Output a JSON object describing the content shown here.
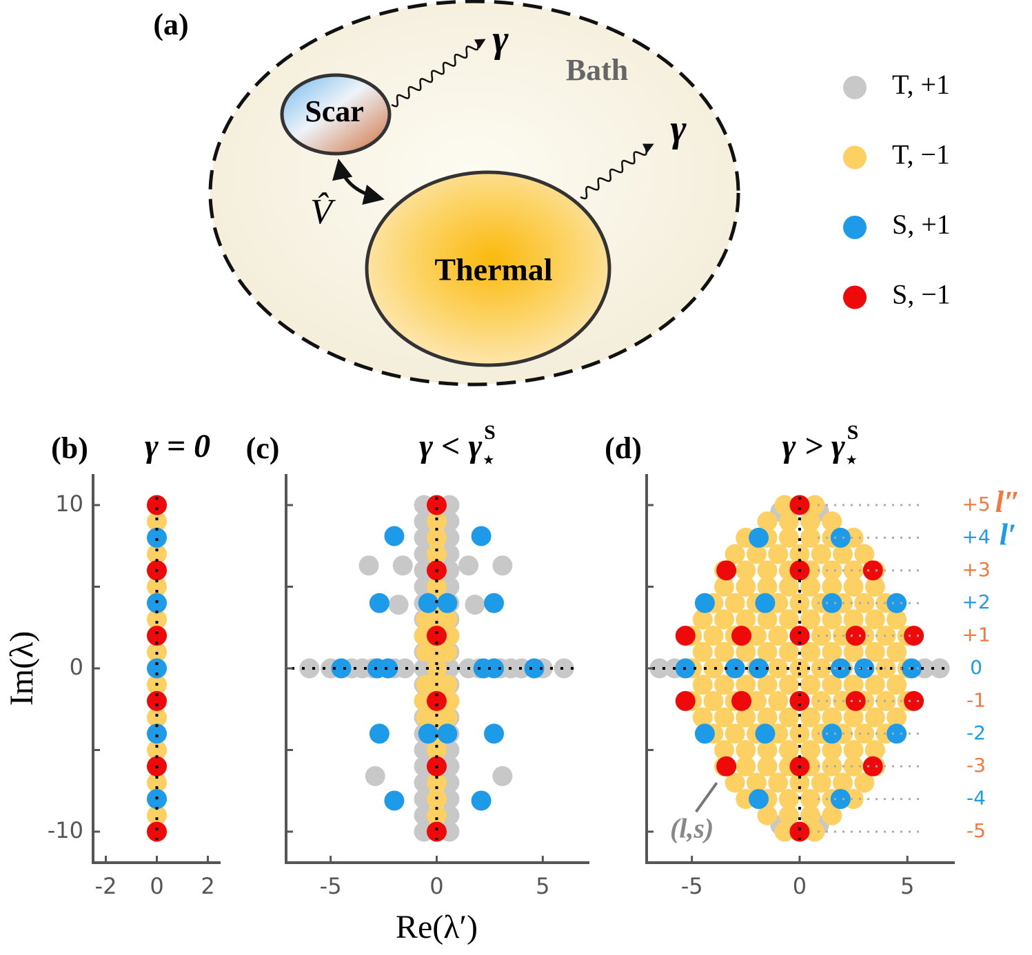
{
  "diagram": {
    "label": "(a)",
    "bath": "Bath",
    "scar": "Scar",
    "thermal": "Thermal",
    "gamma": "γ",
    "coupling": "V̂"
  },
  "chart_data": [
    {
      "type": "scatter",
      "panel_label": "(b)",
      "title": "γ = 0",
      "xlim": [
        -2.5,
        2.5
      ],
      "xticks": [
        -2,
        0,
        2
      ],
      "ylim": [
        -11.9,
        11.9
      ],
      "yticks": [
        -10,
        0,
        10
      ],
      "yminor": [
        -5,
        5
      ],
      "ylabel": "Im(λ)",
      "series": [
        {
          "color": "#fcd062",
          "x": [
            0,
            0,
            0,
            0,
            0,
            0,
            0,
            0,
            0,
            0,
            0,
            0,
            0,
            0,
            0,
            0,
            0,
            0,
            0,
            0,
            0
          ],
          "values": [
            10,
            9,
            8,
            7,
            6,
            5,
            4,
            3,
            2,
            1,
            0,
            -1,
            -2,
            -3,
            -4,
            -5,
            -6,
            -7,
            -8,
            -9,
            -10
          ]
        },
        {
          "color": "#1e9be8",
          "x": [
            0,
            0,
            0,
            0,
            0
          ],
          "values": [
            8,
            4,
            0,
            -4,
            -8
          ]
        },
        {
          "color": "#ee0a0a",
          "x": [
            0,
            0,
            0,
            0,
            0,
            0
          ],
          "values": [
            10,
            6,
            2,
            -2,
            -6,
            -10
          ]
        }
      ]
    },
    {
      "type": "scatter",
      "panel_label": "(c)",
      "title": "γ < γ",
      "title_sup": "S",
      "title_sub": "⋆",
      "xlim": [
        -7.1,
        7.2
      ],
      "xticks": [
        -5,
        0,
        5
      ],
      "ylim": [
        -11.9,
        11.9
      ],
      "yticks": [
        -10,
        -5,
        0,
        5,
        10
      ],
      "ytick_labels": false,
      "xlabel": "Re(λ′)",
      "series": [
        {
          "color": "#c8c8c8",
          "x": [
            -0.6,
            0.6,
            -0.6,
            0.6,
            -0.6,
            0.6,
            -0.6,
            0.6,
            -0.6,
            0.6,
            -0.6,
            0.6,
            -0.6,
            0.6,
            -0.6,
            0.6,
            -0.6,
            0.6,
            -0.6,
            0.6,
            -0.6,
            0.6,
            -0.6,
            0.6,
            -0.6,
            0.6,
            -0.6,
            0.6,
            -0.6,
            0.6,
            -0.6,
            0.6,
            -0.6,
            0.6,
            -0.6,
            0.6,
            -0.6,
            0.6,
            -0.6,
            0.6,
            -0.6,
            0.6,
            -6,
            -5,
            -4,
            -3.5,
            -3,
            -2,
            -1.5,
            1.5,
            2,
            3,
            3.5,
            4,
            5,
            6,
            -3.2,
            -1.6,
            1.5,
            3.1,
            -1.8,
            1.8,
            -2.9,
            3.1
          ],
          "values": [
            10,
            10,
            9,
            9,
            8,
            8,
            7,
            7,
            6,
            6,
            5,
            5,
            4,
            4,
            3,
            3,
            2,
            2,
            1,
            1,
            0,
            0,
            -1,
            -1,
            -2,
            -2,
            -3,
            -3,
            -4,
            -4,
            -5,
            -5,
            -6,
            -6,
            -7,
            -7,
            -8,
            -8,
            -9,
            -9,
            -10,
            -10,
            0,
            0,
            0,
            0,
            0,
            0,
            0,
            0,
            0,
            0,
            0,
            0,
            0,
            0,
            6.3,
            6.3,
            6.3,
            6.3,
            3.9,
            3.9,
            -6.6,
            -6.6
          ]
        },
        {
          "color": "#fcd062",
          "x": [
            0,
            0,
            0,
            0,
            0,
            0,
            0,
            0,
            0,
            0,
            0,
            0,
            0,
            0,
            0,
            0,
            0,
            0,
            0,
            0,
            0,
            -0.6,
            0.6,
            -0.6,
            0.6,
            -0.5,
            0.5,
            -0.5,
            0.5,
            -0.5,
            0.5,
            -0.5,
            0.5
          ],
          "values": [
            10,
            9,
            8,
            7,
            6,
            5,
            4,
            3,
            2,
            1,
            0,
            -1,
            -2,
            -3,
            -4,
            -5,
            -6,
            -7,
            -8,
            -9,
            -10,
            2,
            2,
            -2,
            -2,
            3,
            3,
            1,
            1,
            -1,
            -1,
            -3,
            -3
          ]
        },
        {
          "color": "#1e9be8",
          "x": [
            -2,
            2.1,
            -2.7,
            -0.4,
            0.5,
            2.7,
            -4.5,
            -2.8,
            -2.3,
            2.2,
            2.7,
            4.6,
            -2.7,
            -0.4,
            0.5,
            2.7,
            -2,
            2.1
          ],
          "values": [
            8.1,
            8.1,
            4,
            4,
            4,
            4,
            0,
            0,
            0,
            0,
            0,
            0,
            -4,
            -4,
            -4,
            -4,
            -8.1,
            -8.1
          ]
        },
        {
          "color": "#ee0a0a",
          "x": [
            0,
            0,
            0,
            0,
            0,
            0
          ],
          "values": [
            10,
            6,
            2,
            -2,
            -6,
            -10
          ]
        }
      ]
    },
    {
      "type": "scatter",
      "panel_label": "(d)",
      "title": "γ > γ",
      "title_sup": "S",
      "title_sub": "⋆",
      "xlim": [
        -7.1,
        7.2
      ],
      "xticks": [
        -5,
        0,
        5
      ],
      "ylim": [
        -11.9,
        11.9
      ],
      "yticks": [
        -10,
        -5,
        0,
        5,
        10
      ],
      "ytick_labels": false,
      "series": [
        {
          "name": "T, +1",
          "color": "#c8c8c8",
          "x": [
            -6.5,
            -5.8,
            5.8,
            6.5,
            -0.9,
            0.9,
            -0.9,
            0.9
          ],
          "values": [
            0,
            0,
            0,
            0,
            9.6,
            9.6,
            -9.6,
            -9.6
          ]
        },
        {
          "name": "T, −1",
          "color": "#fcd062",
          "x": [
            -0.7,
            0.7,
            -1.5,
            -0.5,
            0.5,
            1.5,
            -2.5,
            -1.5,
            -0.5,
            0.5,
            1.5,
            2.5,
            -3,
            -2,
            -1,
            0,
            1,
            2,
            3,
            -3.5,
            -2.5,
            -1.5,
            -0.5,
            0.5,
            1.5,
            2.5,
            3.5,
            -3.5,
            -2.5,
            -1.5,
            -0.5,
            0.5,
            1.5,
            2.5,
            3.5,
            -4,
            -3,
            -2,
            -1,
            0,
            1,
            2,
            3,
            4,
            -4.5,
            -3.5,
            -2.5,
            -1.5,
            -0.5,
            0.5,
            1.5,
            2.5,
            3.5,
            4.5,
            -5,
            -4,
            -3,
            -2,
            -1,
            0,
            1,
            2,
            3,
            4,
            5,
            -4.5,
            -3.5,
            -2.5,
            -1.5,
            -0.5,
            0.5,
            1.5,
            2.5,
            3.5,
            4.5,
            -5,
            -4,
            -3,
            -2,
            -1,
            0,
            1,
            2,
            3,
            4,
            5,
            -4.5,
            -3.5,
            -2.5,
            -1.5,
            -0.5,
            0.5,
            1.5,
            2.5,
            3.5,
            4.5,
            -5,
            -4,
            -3,
            -2,
            -1,
            0,
            1,
            2,
            3,
            4,
            5,
            -4.5,
            -3.5,
            -2.5,
            -1.5,
            -0.5,
            0.5,
            1.5,
            2.5,
            3.5,
            4.5,
            -4,
            -3,
            -2,
            -1,
            0,
            1,
            2,
            3,
            4,
            -3.5,
            -2.5,
            -1.5,
            -0.5,
            0.5,
            1.5,
            2.5,
            3.5,
            -3.5,
            -2.5,
            -1.5,
            -0.5,
            0.5,
            1.5,
            2.5,
            3.5,
            -3,
            -2,
            -1,
            0,
            1,
            2,
            3,
            -2.5,
            -1.5,
            -0.5,
            0.5,
            1.5,
            2.5,
            -1.5,
            -0.5,
            0.5,
            1.5,
            -0.7,
            0.7
          ],
          "values": [
            10,
            10,
            9,
            9,
            9,
            9,
            8,
            8,
            8,
            8,
            8,
            8,
            7,
            7,
            7,
            7,
            7,
            7,
            7,
            6,
            6,
            6,
            6,
            6,
            6,
            6,
            6,
            5,
            5,
            5,
            5,
            5,
            5,
            5,
            5,
            4,
            4,
            4,
            4,
            4,
            4,
            4,
            4,
            4,
            3,
            3,
            3,
            3,
            3,
            3,
            3,
            3,
            3,
            3,
            2,
            2,
            2,
            2,
            2,
            2,
            2,
            2,
            2,
            2,
            2,
            1,
            1,
            1,
            1,
            1,
            1,
            1,
            1,
            1,
            1,
            0,
            0,
            0,
            0,
            0,
            0,
            0,
            0,
            0,
            0,
            0,
            -1,
            -1,
            -1,
            -1,
            -1,
            -1,
            -1,
            -1,
            -1,
            -1,
            -2,
            -2,
            -2,
            -2,
            -2,
            -2,
            -2,
            -2,
            -2,
            -2,
            -2,
            -3,
            -3,
            -3,
            -3,
            -3,
            -3,
            -3,
            -3,
            -3,
            -3,
            -4,
            -4,
            -4,
            -4,
            -4,
            -4,
            -4,
            -4,
            -4,
            -5,
            -5,
            -5,
            -5,
            -5,
            -5,
            -5,
            -5,
            -6,
            -6,
            -6,
            -6,
            -6,
            -6,
            -6,
            -6,
            -7,
            -7,
            -7,
            -7,
            -7,
            -7,
            -7,
            -8,
            -8,
            -8,
            -8,
            -8,
            -8,
            -9,
            -9,
            -9,
            -9,
            -10,
            -10
          ]
        },
        {
          "name": "S, +1",
          "color": "#1e9be8",
          "x": [
            -1.9,
            1.9,
            -4.4,
            -1.6,
            1.5,
            4.5,
            -5.3,
            -3,
            -1.9,
            1.9,
            3,
            5.2,
            -4.4,
            -1.6,
            1.5,
            4.5,
            -1.9,
            1.9
          ],
          "values": [
            8,
            8,
            4,
            4,
            4,
            4,
            0,
            0,
            0,
            0,
            0,
            0,
            -4,
            -4,
            -4,
            -4,
            -8,
            -8
          ]
        },
        {
          "name": "S, −1",
          "color": "#ee0a0a",
          "x": [
            0,
            -3.4,
            0,
            3.4,
            -5.3,
            -2.7,
            0,
            2.6,
            5.3,
            -5.3,
            -2.7,
            0,
            2.6,
            5.3,
            -3.4,
            0,
            3.4,
            0
          ],
          "values": [
            10,
            6,
            6,
            6,
            2,
            2,
            2,
            2,
            2,
            -2,
            -2,
            -2,
            -2,
            -2,
            -6,
            -6,
            -6,
            -10
          ]
        }
      ],
      "levels": {
        "values": [
          10,
          8,
          6,
          4,
          2,
          0,
          -2,
          -4,
          -6,
          -8,
          -10
        ],
        "labels": [
          "+5",
          "+4",
          "+3",
          "+2",
          "+1",
          "0",
          "-1",
          "-2",
          "-3",
          "-4",
          "-5"
        ],
        "colors": [
          "#f4773e",
          "#1e9be8",
          "#f4773e",
          "#1e9be8",
          "#f4773e",
          "#1e9be8",
          "#f4773e",
          "#1e9be8",
          "#f4773e",
          "#1e9be8",
          "#f4773e"
        ]
      },
      "level_axes": [
        {
          "label": "l″",
          "color": "#f4773e"
        },
        {
          "label": "l′",
          "color": "#1e9be8"
        }
      ],
      "annotation": {
        "text": "(l,s)",
        "x": -3.4,
        "y": -6
      }
    }
  ]
}
